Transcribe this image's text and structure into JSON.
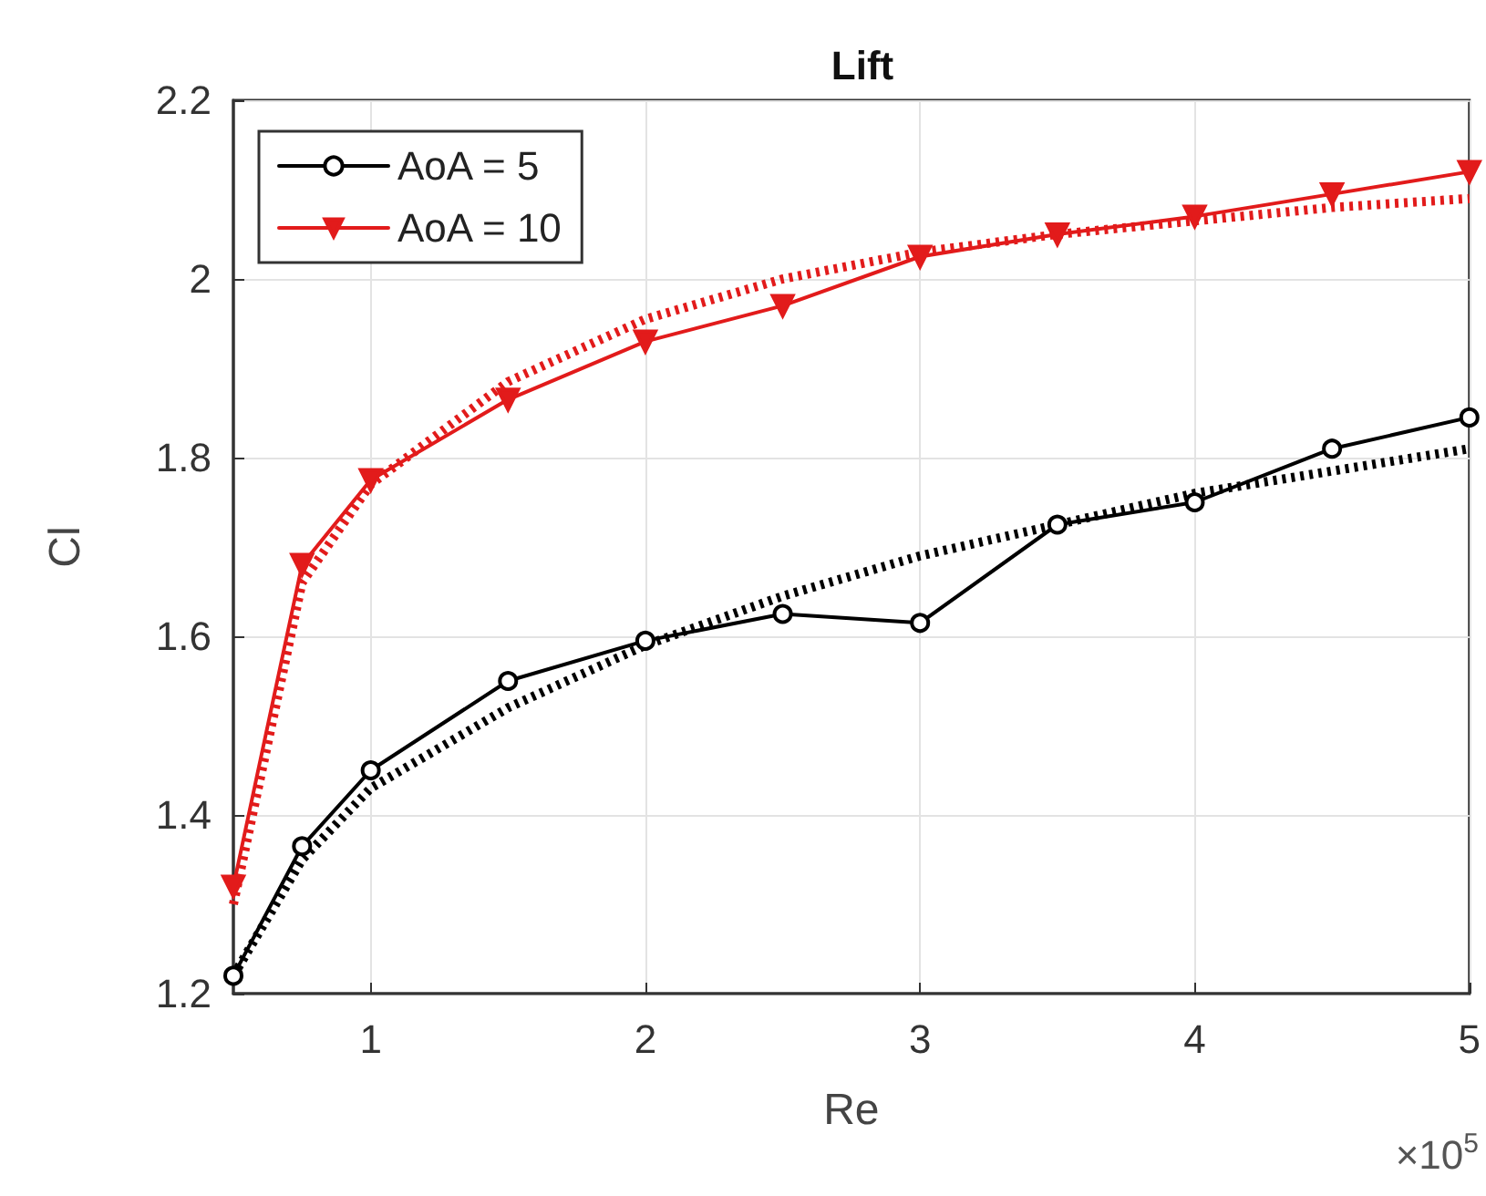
{
  "chart_data": {
    "type": "line",
    "title": "Lift",
    "xlabel": "Re",
    "ylabel": "Cl",
    "annotations": [
      "×10$^{5}$"
    ],
    "x": [
      0.5,
      0.75,
      1,
      1.5,
      2,
      2.5,
      3,
      3.5,
      4,
      4.5,
      5
    ],
    "series": [
      {
        "name": "AoA = 5",
        "color": "#000000",
        "marker": "circle",
        "line_style": "solid",
        "values": [
          1.22,
          1.365,
          1.45,
          1.55,
          1.595,
          1.625,
          1.615,
          1.725,
          1.75,
          1.81,
          1.845
        ]
      },
      {
        "name": "AoA = 10",
        "color": "#e21b1b",
        "marker": "triangle",
        "line_style": "solid",
        "values": [
          1.32,
          1.68,
          1.775,
          1.865,
          1.93,
          1.97,
          2.025,
          2.05,
          2.07,
          2.095,
          2.12
        ]
      },
      {
        "color": "#000000",
        "marker": "none",
        "line_style": "dotted",
        "values": [
          1.22,
          1.35,
          1.43,
          1.52,
          1.59,
          1.645,
          1.69,
          1.725,
          1.76,
          1.785,
          1.81
        ]
      },
      {
        "color": "#e21b1b",
        "marker": "none",
        "line_style": "dotted",
        "values": [
          1.3,
          1.66,
          1.77,
          1.885,
          1.955,
          2.0,
          2.03,
          2.05,
          2.065,
          2.08,
          2.09
        ]
      }
    ],
    "xlim": [
      0.5,
      5
    ],
    "xticks": [
      1,
      2,
      3,
      4,
      5
    ],
    "ylim": [
      1.2,
      2.2
    ],
    "yticks": [
      1.2,
      1.4,
      1.6,
      1.8,
      2,
      2.2
    ],
    "grid": true,
    "legend": "top left"
  }
}
